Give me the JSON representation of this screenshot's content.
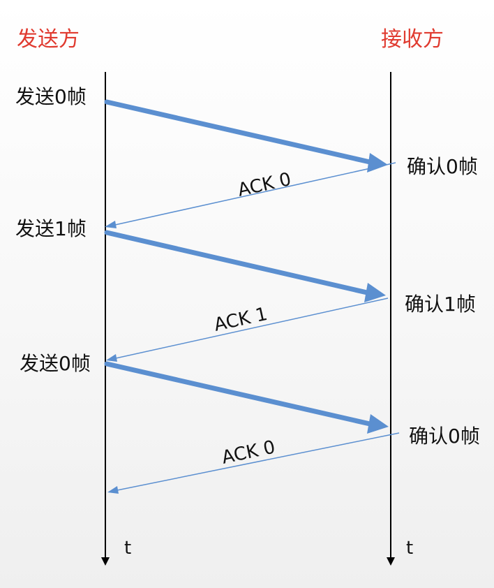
{
  "sender": {
    "title": "发送方",
    "time_label": "t",
    "events": [
      "发送0帧",
      "发送1帧",
      "发送0帧"
    ]
  },
  "receiver": {
    "title": "接收方",
    "time_label": "t",
    "events": [
      "确认0帧",
      "确认1帧",
      "确认0帧"
    ]
  },
  "acks": [
    "ACK 0",
    "ACK 1",
    "ACK 0"
  ],
  "colors": {
    "role_text": "#e03a2f",
    "frame_arrow": "#5b8fd0",
    "ack_arrow": "#5b8fd0",
    "timeline": "#000000"
  }
}
